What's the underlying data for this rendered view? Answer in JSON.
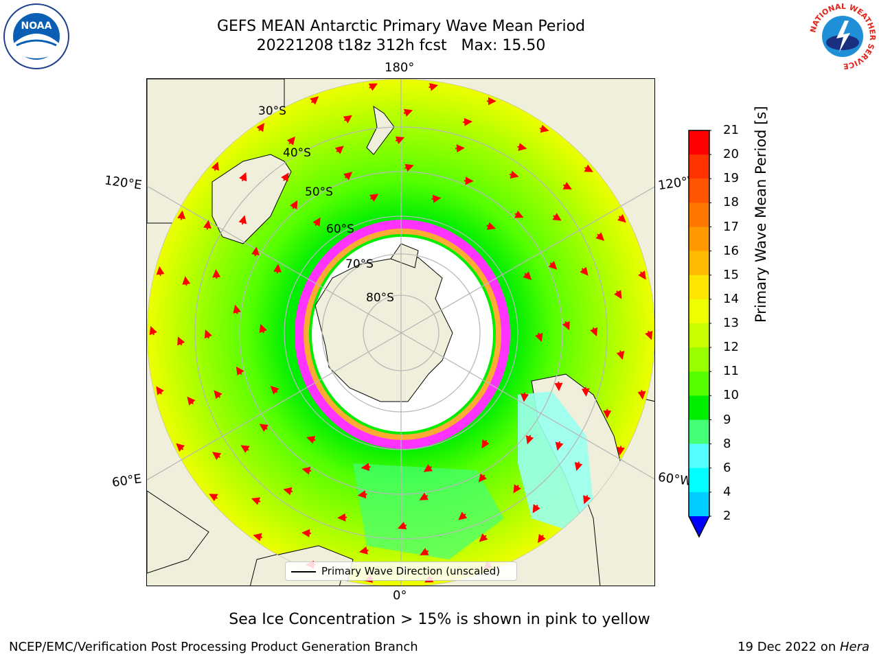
{
  "title": {
    "line1": "GEFS MEAN Antarctic Primary Wave Mean Period",
    "line2": "20221208 t18z 312h fcst   Max: 15.50"
  },
  "logos": {
    "left": "NOAA",
    "right_ring": "NATIONAL WEATHER SERVICE"
  },
  "map": {
    "meridian_labels": {
      "top": "180°",
      "bottom": "0°",
      "left_upper": "120°E",
      "left_lower": "60°E",
      "right_upper": "120°W",
      "right_lower": "60°W"
    },
    "latitude_labels": [
      "30°S",
      "40°S",
      "50°S",
      "60°S",
      "70°S",
      "80°S"
    ],
    "legend": "Primary Wave Direction (unscaled)"
  },
  "colorbar": {
    "label": "Primary Wave Mean Period [s]",
    "ticks": [
      "21",
      "20",
      "19",
      "18",
      "17",
      "16",
      "15",
      "14",
      "13",
      "12",
      "11",
      "10",
      "9",
      "8",
      "6",
      "4",
      "2"
    ],
    "colors": [
      "#ff0000",
      "#ff3300",
      "#ff5500",
      "#ff7700",
      "#ff9900",
      "#ffbb00",
      "#ffe600",
      "#eeff00",
      "#c8ff00",
      "#99ff00",
      "#55ff00",
      "#00ee00",
      "#44ff77",
      "#99ffee",
      "#55ffff",
      "#00ffff",
      "#00ccff",
      "#0077ff"
    ],
    "extend_color": "#0000ff"
  },
  "footer": {
    "caption": "Sea Ice Concentration > 15% is shown in pink to yellow",
    "left": "NCEP/EMC/Verification Post Processing Product Generation Branch",
    "right_date": "19 Dec 2022 on ",
    "right_host": "Hera"
  }
}
